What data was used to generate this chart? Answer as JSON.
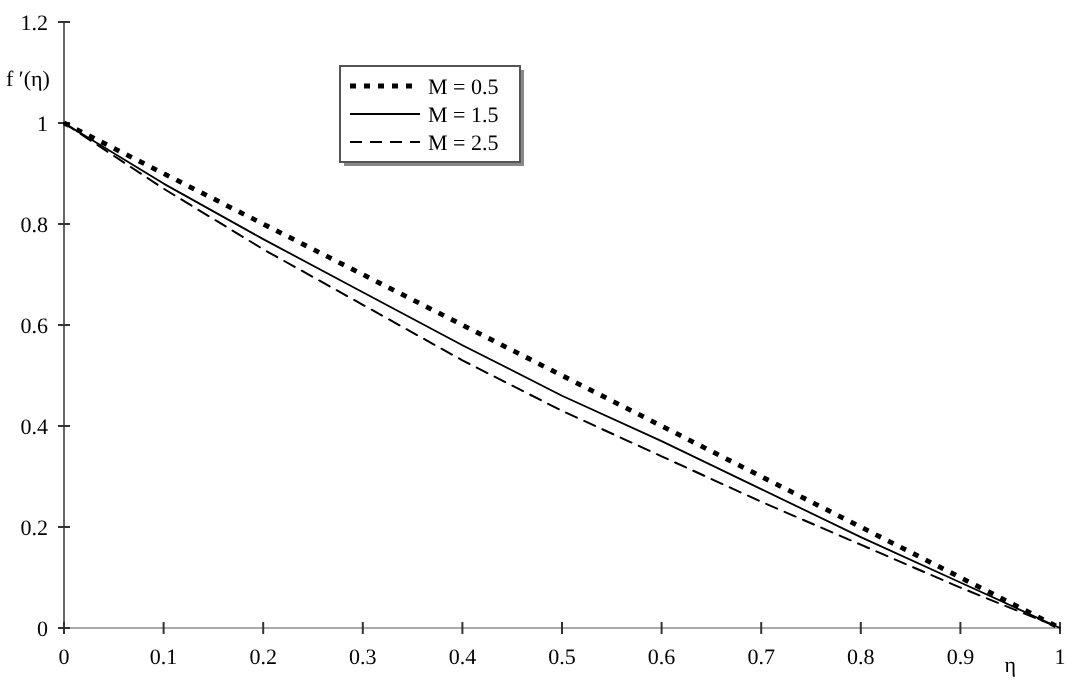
{
  "chart_data": {
    "type": "line",
    "xlabel": "η",
    "ylabel": "f ′(η)",
    "x": [
      0,
      0.1,
      0.2,
      0.3,
      0.4,
      0.5,
      0.6,
      0.7,
      0.8,
      0.9,
      1
    ],
    "series": [
      {
        "name": "M = 0.5",
        "color": "#000000",
        "line_style": "dotted",
        "values": [
          1,
          0.9,
          0.8,
          0.7,
          0.6,
          0.5,
          0.4,
          0.3,
          0.2,
          0.1,
          0
        ]
      },
      {
        "name": "M = 1.5",
        "color": "#000000",
        "line_style": "solid",
        "values": [
          1,
          0.88,
          0.77,
          0.665,
          0.56,
          0.46,
          0.37,
          0.275,
          0.18,
          0.09,
          0
        ]
      },
      {
        "name": "M = 2.5",
        "color": "#000000",
        "line_style": "dashed",
        "values": [
          1,
          0.87,
          0.75,
          0.64,
          0.53,
          0.43,
          0.34,
          0.25,
          0.165,
          0.08,
          0
        ]
      }
    ],
    "xlim": [
      0,
      1
    ],
    "xticks": [
      0,
      0.1,
      0.2,
      0.3,
      0.4,
      0.5,
      0.6,
      0.7,
      0.8,
      0.9,
      1
    ],
    "ylim": [
      0,
      1.2
    ],
    "yticks": [
      0,
      0.2,
      0.4,
      0.6,
      0.8,
      1,
      1.2
    ],
    "grid": false,
    "legend": "top left",
    "marker": "none"
  }
}
